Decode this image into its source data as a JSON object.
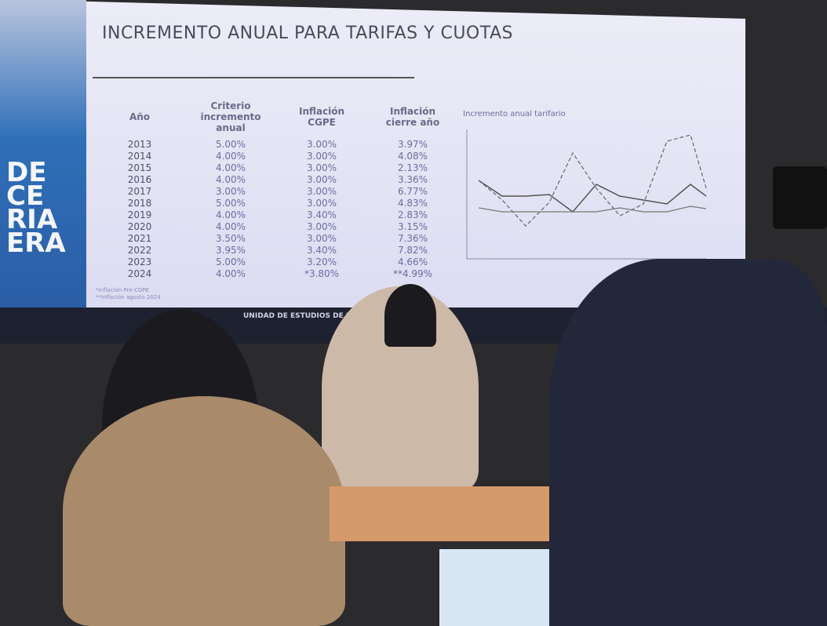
{
  "slide": {
    "title": "INCREMENTO ANUAL PARA TARIFAS Y CUOTAS",
    "side_text": [
      "DE",
      "CE",
      "RIA",
      "ERA"
    ],
    "table": {
      "headers": [
        "Año",
        "Criterio incremento anual",
        "Inflación CGPE",
        "Inflación cierre año"
      ],
      "rows": [
        [
          "2013",
          "5.00%",
          "3.00%",
          "3.97%"
        ],
        [
          "2014",
          "4.00%",
          "3.00%",
          "4.08%"
        ],
        [
          "2015",
          "4.00%",
          "3.00%",
          "2.13%"
        ],
        [
          "2016",
          "4.00%",
          "3.00%",
          "3.36%"
        ],
        [
          "2017",
          "3.00%",
          "3.00%",
          "6.77%"
        ],
        [
          "2018",
          "5.00%",
          "3.00%",
          "4.83%"
        ],
        [
          "2019",
          "4.00%",
          "3.40%",
          "2.83%"
        ],
        [
          "2020",
          "4.00%",
          "3.00%",
          "3.15%"
        ],
        [
          "2021",
          "3.50%",
          "3.00%",
          "7.36%"
        ],
        [
          "2022",
          "3.95%",
          "3.40%",
          "7.82%"
        ],
        [
          "2023",
          "5.00%",
          "3.20%",
          "4.66%"
        ],
        [
          "2024",
          "4.00%",
          "*3.80%",
          "**4.99%"
        ]
      ]
    },
    "footnotes": [
      "*Inflación Pre-CGPE",
      "**Inflación agosto 2024"
    ],
    "chart_title": "Incremento anual tarifario",
    "footer": "UNIDAD DE ESTUDIOS DE LAS FINAN"
  }
}
